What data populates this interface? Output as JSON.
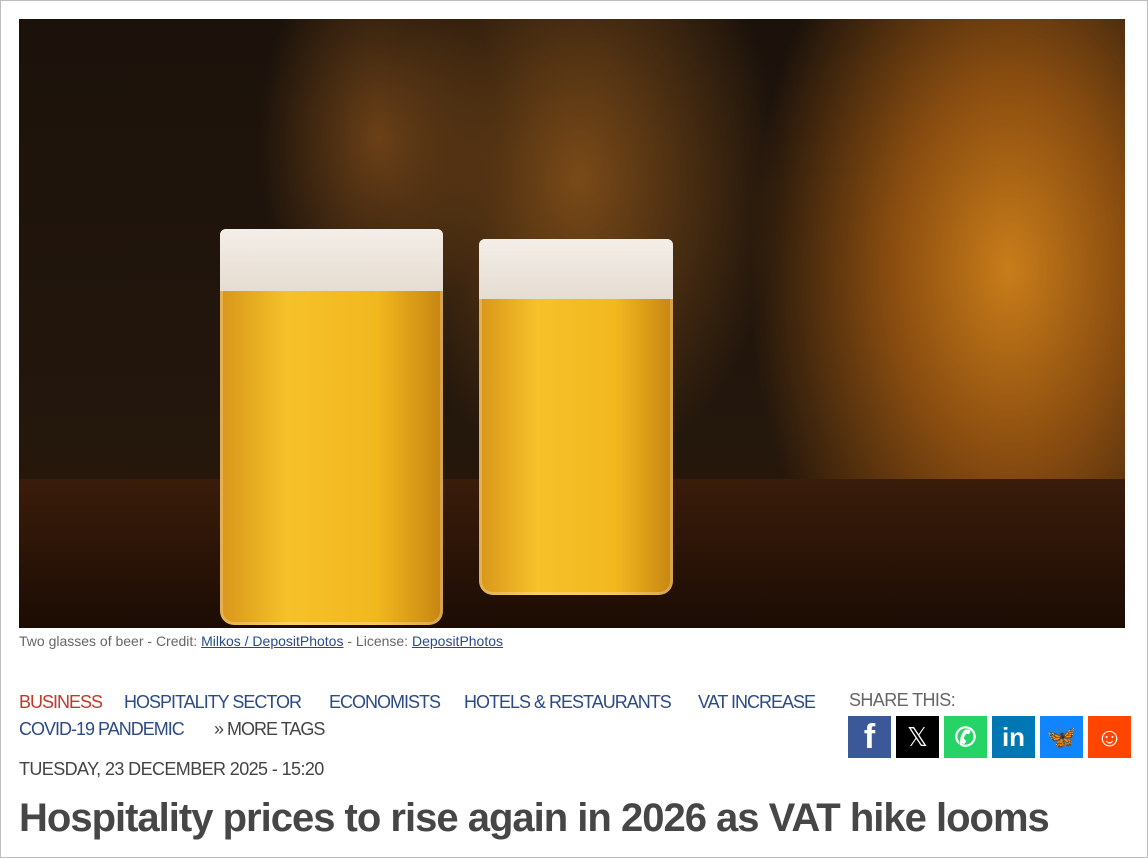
{
  "image": {
    "caption_text": "Two glasses of beer - Credit: ",
    "credit_link": "Milkos / DepositPhotos",
    "license_text": " - License: ",
    "license_link": "DepositPhotos"
  },
  "tags": [
    {
      "label": "BUSINESS",
      "color": "#c0392b"
    },
    {
      "label": "HOSPITALITY SECTOR"
    },
    {
      "label": "ECONOMISTS"
    },
    {
      "label": "HOTELS & RESTAURANTS"
    },
    {
      "label": "VAT INCREASE"
    },
    {
      "label": "COVID-19 PANDEMIC"
    }
  ],
  "more_tags": "» MORE TAGS",
  "date": "TUESDAY, 23 DECEMBER 2025 - 15:20",
  "share": {
    "label": "SHARE THIS:",
    "buttons": [
      {
        "icon": "facebook-icon",
        "glyph": "f",
        "color": "#3b5998"
      },
      {
        "icon": "x-icon",
        "glyph": "𝕏",
        "color": "#000000"
      },
      {
        "icon": "whatsapp-icon",
        "glyph": "✆",
        "color": "#25d366"
      },
      {
        "icon": "linkedin-icon",
        "glyph": "in",
        "color": "#0077b5"
      },
      {
        "icon": "bluesky-icon",
        "glyph": "🦋",
        "color": "#1185fe"
      },
      {
        "icon": "reddit-icon",
        "glyph": "☺",
        "color": "#ff4500"
      }
    ]
  },
  "headline": "Hospitality prices to rise again in 2026 as VAT hike looms"
}
